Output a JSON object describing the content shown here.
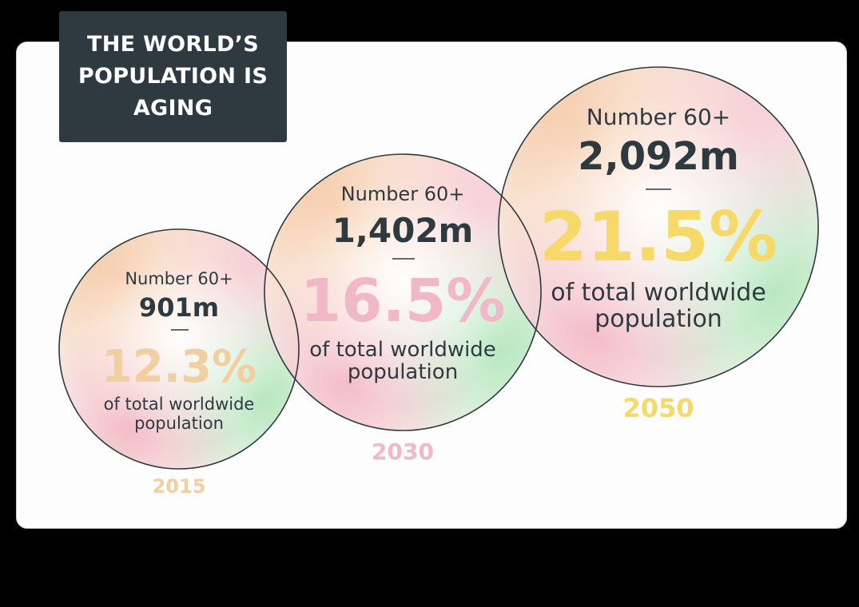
{
  "chart_data": {
    "type": "bubble",
    "title": "THE WORLD’S POPULATION IS AGING",
    "series": [
      {
        "year": "2015",
        "count_label": "Number 60+",
        "count": "901m",
        "percent": "12.3%",
        "description": "of total worldwide population",
        "color": "#f2cfa0"
      },
      {
        "year": "2030",
        "count_label": "Number 60+",
        "count": "1,402m",
        "percent": "16.5%",
        "description": "of total worldwide population",
        "color": "#f0b8c8"
      },
      {
        "year": "2050",
        "count_label": "Number 60+",
        "count": "2,092m",
        "percent": "21.5%",
        "description": "of total worldwide population",
        "color": "#f7d96a"
      }
    ]
  },
  "colors": {
    "text_dark": "#2e3a40",
    "panel": "#2e3a40",
    "background": "#000000",
    "card": "#fdfdfd"
  }
}
